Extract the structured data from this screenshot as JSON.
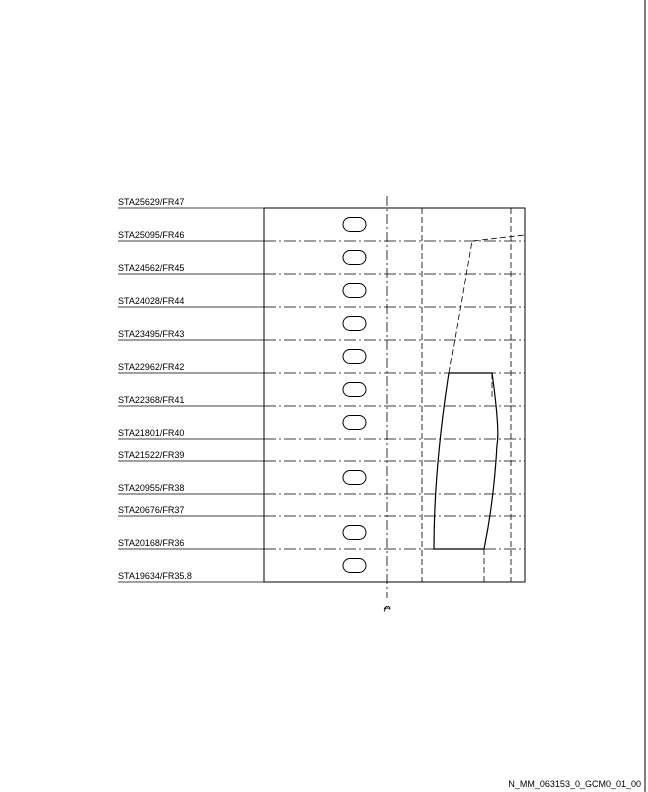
{
  "drawing": {
    "stations": [
      {
        "label": "STA25629/FR47",
        "has_cutout": false
      },
      {
        "label": "STA25095/FR46",
        "has_cutout": true
      },
      {
        "label": "STA24562/FR45",
        "has_cutout": true
      },
      {
        "label": "STA24028/FR44",
        "has_cutout": true
      },
      {
        "label": "STA23495/FR43",
        "has_cutout": true
      },
      {
        "label": "STA22962/FR42",
        "has_cutout": true
      },
      {
        "label": "STA22368/FR41",
        "has_cutout": true
      },
      {
        "label": "STA21801/FR40",
        "has_cutout": true
      },
      {
        "label": "STA21522/FR39",
        "has_cutout": false
      },
      {
        "label": "STA20955/FR38",
        "has_cutout": true
      },
      {
        "label": "STA20676/FR37",
        "has_cutout": false
      },
      {
        "label": "STA20168/FR36",
        "has_cutout": true
      },
      {
        "label": "STA19634/FR35.8",
        "has_cutout": true
      }
    ],
    "centerline_symbol": "℄",
    "reference_code": "N_MM_063153_0_GCM0_01_00"
  }
}
